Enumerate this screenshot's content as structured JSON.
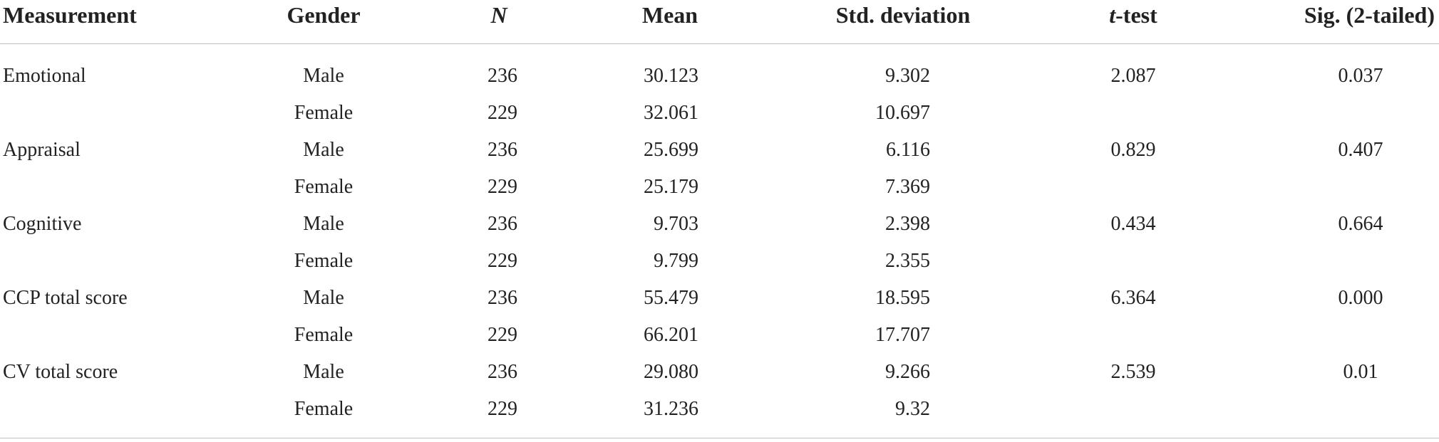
{
  "headers": {
    "measurement": "Measurement",
    "gender": "Gender",
    "n": "N",
    "mean": "Mean",
    "sd": "Std. deviation",
    "t_italic": "t",
    "t_rest": "-test",
    "sig": "Sig. (2-tailed)"
  },
  "rows": [
    {
      "measurement": "Emotional",
      "gender": "Male",
      "n": "236",
      "mean": "30.123",
      "sd": "9.302",
      "t": "2.087",
      "sig": "0.037"
    },
    {
      "measurement": "",
      "gender": "Female",
      "n": "229",
      "mean": "32.061",
      "sd": "10.697",
      "t": "",
      "sig": ""
    },
    {
      "measurement": "Appraisal",
      "gender": "Male",
      "n": "236",
      "mean": "25.699",
      "sd": "6.116",
      "t": "0.829",
      "sig": "0.407"
    },
    {
      "measurement": "",
      "gender": "Female",
      "n": "229",
      "mean": "25.179",
      "sd": "7.369",
      "t": "",
      "sig": ""
    },
    {
      "measurement": "Cognitive",
      "gender": "Male",
      "n": "236",
      "mean": "9.703",
      "sd": "2.398",
      "t": "0.434",
      "sig": "0.664"
    },
    {
      "measurement": "",
      "gender": "Female",
      "n": "229",
      "mean": "9.799",
      "sd": "2.355",
      "t": "",
      "sig": ""
    },
    {
      "measurement": "CCP total score",
      "gender": "Male",
      "n": "236",
      "mean": "55.479",
      "sd": "18.595",
      "t": "6.364",
      "sig": "0.000"
    },
    {
      "measurement": "",
      "gender": "Female",
      "n": "229",
      "mean": "66.201",
      "sd": "17.707",
      "t": "",
      "sig": ""
    },
    {
      "measurement": "CV total score",
      "gender": "Male",
      "n": "236",
      "mean": "29.080",
      "sd": "9.266",
      "t": "2.539",
      "sig": "0.01"
    },
    {
      "measurement": "",
      "gender": "Female",
      "n": "229",
      "mean": "31.236",
      "sd": "9.32",
      "t": "",
      "sig": ""
    }
  ]
}
